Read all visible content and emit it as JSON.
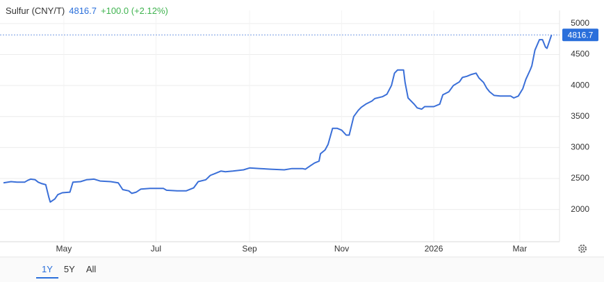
{
  "chart_data": {
    "type": "line",
    "title": "Sulfur (CNY/T)",
    "last_value": 4816.7,
    "change": "+100.0 (+2.12%)",
    "color": "#3a6fd8",
    "x": [
      0,
      5,
      9,
      14,
      16,
      18,
      21,
      23,
      25,
      28,
      30,
      31,
      34,
      36,
      39,
      44,
      46,
      51,
      55,
      60,
      64,
      71,
      76,
      79,
      83,
      85,
      88,
      91,
      97,
      106,
      108,
      115,
      121,
      126,
      129,
      134,
      137,
      140,
      144,
      147,
      152,
      159,
      163,
      170,
      177,
      186,
      191,
      198,
      200,
      203,
      206,
      209,
      210,
      213,
      215,
      218,
      221,
      224,
      227,
      229,
      232,
      235,
      237,
      240,
      244,
      246,
      251,
      254,
      257,
      259,
      261,
      265,
      266,
      268,
      272,
      274,
      277,
      279,
      285,
      289,
      291,
      295,
      298,
      302,
      304,
      307,
      310,
      313,
      315,
      318,
      320,
      322,
      325,
      329,
      336,
      338,
      341,
      344,
      346,
      349,
      350,
      352,
      355,
      357,
      359,
      360,
      363
    ],
    "values": [
      2430,
      2450,
      2440,
      2440,
      2470,
      2490,
      2480,
      2440,
      2420,
      2400,
      2200,
      2120,
      2170,
      2240,
      2270,
      2280,
      2440,
      2450,
      2480,
      2490,
      2460,
      2450,
      2430,
      2320,
      2300,
      2260,
      2280,
      2330,
      2340,
      2340,
      2310,
      2300,
      2300,
      2350,
      2450,
      2480,
      2550,
      2580,
      2620,
      2610,
      2620,
      2640,
      2670,
      2660,
      2650,
      2640,
      2660,
      2660,
      2650,
      2700,
      2750,
      2780,
      2900,
      2960,
      3050,
      3310,
      3310,
      3280,
      3200,
      3200,
      3500,
      3600,
      3650,
      3700,
      3750,
      3790,
      3820,
      3860,
      4000,
      4200,
      4250,
      4250,
      4050,
      3800,
      3700,
      3640,
      3620,
      3660,
      3660,
      3700,
      3850,
      3900,
      4000,
      4060,
      4130,
      4150,
      4180,
      4200,
      4120,
      4050,
      3960,
      3900,
      3840,
      3830,
      3830,
      3800,
      3830,
      3950,
      4100,
      4260,
      4320,
      4570,
      4740,
      4740,
      4620,
      4600,
      4816.7
    ],
    "xlim": [
      0,
      366
    ],
    "xticks": [
      {
        "value": 40,
        "label": "May"
      },
      {
        "value": 101,
        "label": "Jul"
      },
      {
        "value": 163,
        "label": "Sep"
      },
      {
        "value": 224,
        "label": "Nov"
      },
      {
        "value": 285,
        "label": "2026"
      },
      {
        "value": 342,
        "label": "Mar"
      }
    ],
    "ylim": [
      1480,
      5100
    ],
    "yticks": [
      2000,
      2500,
      3000,
      3500,
      4000,
      4500,
      5000
    ],
    "grid": true
  },
  "controls": {
    "ranges": [
      "1Y",
      "5Y",
      "All"
    ],
    "active": 0
  }
}
